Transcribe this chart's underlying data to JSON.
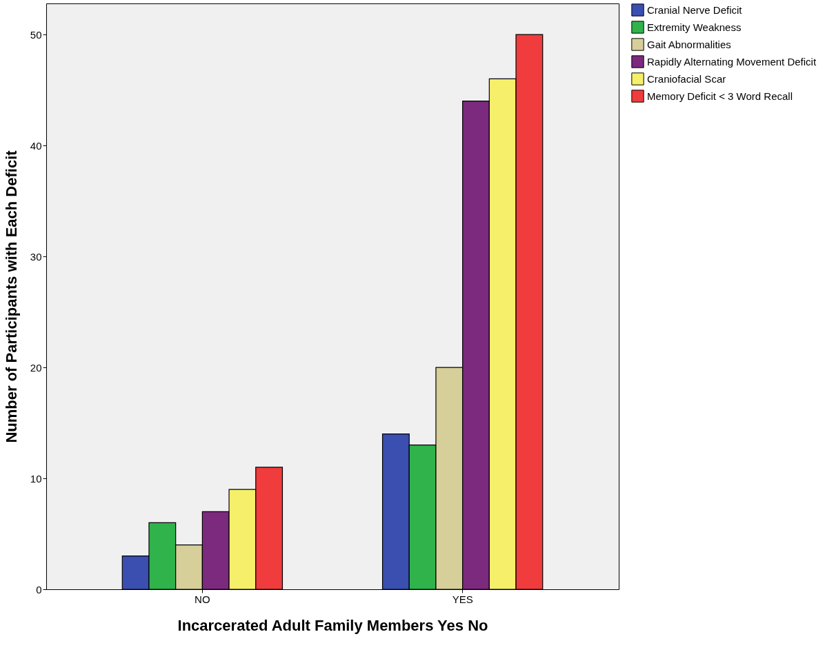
{
  "chart_data": {
    "type": "bar",
    "xlabel": "Incarcerated Adult Family Members Yes No",
    "ylabel": "Number of Participants with Each Deficit",
    "categories": [
      "NO",
      "YES"
    ],
    "series": [
      {
        "name": "Cranial Nerve Deficit",
        "color": "#3a4fb0",
        "values": [
          3,
          14
        ]
      },
      {
        "name": "Extremity Weakness",
        "color": "#2fb34a",
        "values": [
          6,
          13
        ]
      },
      {
        "name": "Gait Abnormalities",
        "color": "#d6cf9a",
        "values": [
          4,
          20
        ]
      },
      {
        "name": "Rapidly Alternating Movement Deficit",
        "color": "#7b2a7e",
        "values": [
          7,
          44
        ]
      },
      {
        "name": "Craniofacial Scar",
        "color": "#f5ef6a",
        "values": [
          9,
          46
        ]
      },
      {
        "name": "Memory Deficit < 3 Word Recall",
        "color": "#f03c3c",
        "values": [
          11,
          50
        ]
      }
    ],
    "ylim": [
      0,
      52.8
    ],
    "yticks": [
      0,
      10,
      20,
      30,
      40,
      50
    ],
    "grid": false,
    "legend": "top right"
  }
}
